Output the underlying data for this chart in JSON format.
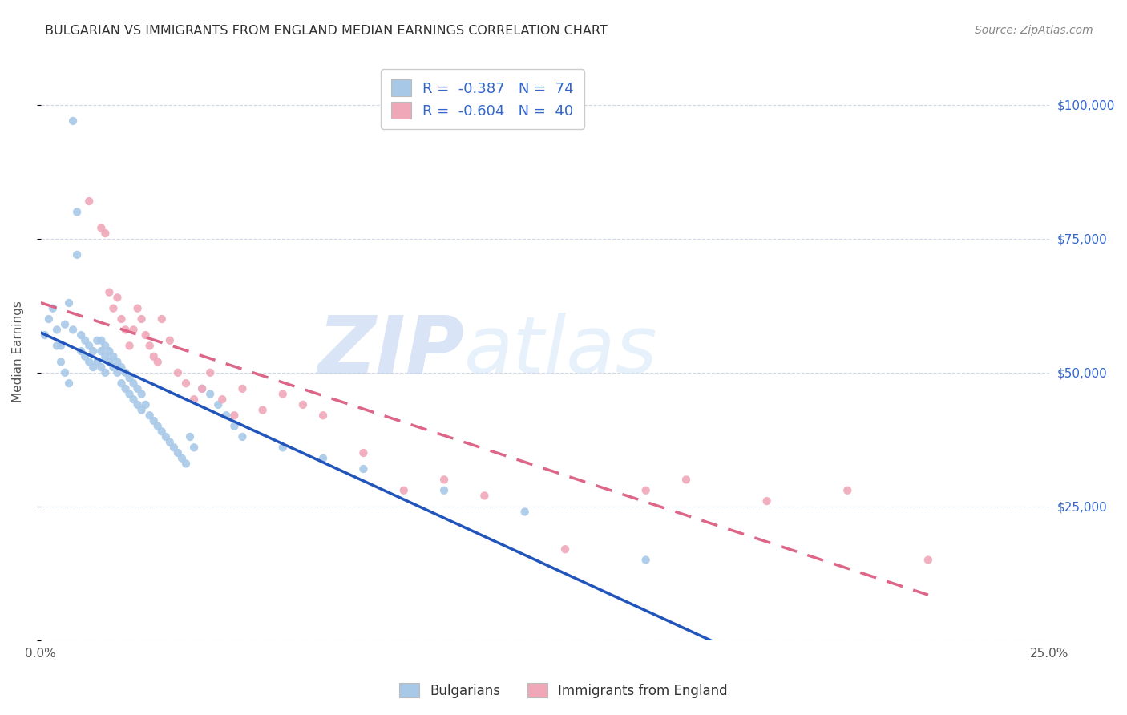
{
  "title": "BULGARIAN VS IMMIGRANTS FROM ENGLAND MEDIAN EARNINGS CORRELATION CHART",
  "source": "Source: ZipAtlas.com",
  "ylabel": "Median Earnings",
  "y_ticks": [
    0,
    25000,
    50000,
    75000,
    100000
  ],
  "y_tick_labels": [
    "",
    "$25,000",
    "$50,000",
    "$75,000",
    "$100,000"
  ],
  "x_min": 0.0,
  "x_max": 0.25,
  "y_min": 0,
  "y_max": 108000,
  "watermark_zip": "ZIP",
  "watermark_atlas": "atlas",
  "legend_r1": "-0.387",
  "legend_n1": "74",
  "legend_r2": "-0.604",
  "legend_n2": "40",
  "blue_color": "#a8c8e8",
  "pink_color": "#f0a8b8",
  "blue_line_color": "#2255bb",
  "pink_line_color": "#dd6688",
  "bg_color": "#ffffff",
  "grid_color": "#d0d8e8",
  "title_color": "#303030",
  "tick_color_right": "#3366cc",
  "source_color": "#888888",
  "legend_label1": "Bulgarians",
  "legend_label2": "Immigrants from England",
  "bulgarians_x": [
    0.001,
    0.002,
    0.003,
    0.004,
    0.005,
    0.006,
    0.007,
    0.008,
    0.008,
    0.009,
    0.009,
    0.01,
    0.01,
    0.011,
    0.011,
    0.012,
    0.012,
    0.013,
    0.013,
    0.014,
    0.014,
    0.015,
    0.015,
    0.015,
    0.016,
    0.016,
    0.016,
    0.017,
    0.017,
    0.018,
    0.018,
    0.019,
    0.019,
    0.02,
    0.02,
    0.021,
    0.021,
    0.022,
    0.022,
    0.023,
    0.023,
    0.024,
    0.024,
    0.025,
    0.025,
    0.026,
    0.027,
    0.028,
    0.029,
    0.03,
    0.031,
    0.032,
    0.033,
    0.034,
    0.035,
    0.036,
    0.037,
    0.038,
    0.04,
    0.042,
    0.044,
    0.046,
    0.048,
    0.05,
    0.06,
    0.07,
    0.08,
    0.1,
    0.12,
    0.15,
    0.004,
    0.005,
    0.006,
    0.007
  ],
  "bulgarians_y": [
    57000,
    60000,
    62000,
    58000,
    55000,
    59000,
    63000,
    97000,
    58000,
    80000,
    72000,
    57000,
    54000,
    56000,
    53000,
    55000,
    52000,
    54000,
    51000,
    56000,
    52000,
    54000,
    51000,
    56000,
    53000,
    50000,
    55000,
    52000,
    54000,
    51000,
    53000,
    50000,
    52000,
    51000,
    48000,
    50000,
    47000,
    49000,
    46000,
    48000,
    45000,
    47000,
    44000,
    46000,
    43000,
    44000,
    42000,
    41000,
    40000,
    39000,
    38000,
    37000,
    36000,
    35000,
    34000,
    33000,
    38000,
    36000,
    47000,
    46000,
    44000,
    42000,
    40000,
    38000,
    36000,
    34000,
    32000,
    28000,
    24000,
    15000,
    55000,
    52000,
    50000,
    48000
  ],
  "england_x": [
    0.012,
    0.015,
    0.016,
    0.017,
    0.018,
    0.019,
    0.02,
    0.021,
    0.022,
    0.023,
    0.024,
    0.025,
    0.026,
    0.027,
    0.028,
    0.029,
    0.03,
    0.032,
    0.034,
    0.036,
    0.038,
    0.04,
    0.042,
    0.045,
    0.048,
    0.05,
    0.055,
    0.06,
    0.065,
    0.07,
    0.08,
    0.09,
    0.1,
    0.11,
    0.13,
    0.15,
    0.16,
    0.18,
    0.2,
    0.22
  ],
  "england_y": [
    82000,
    77000,
    76000,
    65000,
    62000,
    64000,
    60000,
    58000,
    55000,
    58000,
    62000,
    60000,
    57000,
    55000,
    53000,
    52000,
    60000,
    56000,
    50000,
    48000,
    45000,
    47000,
    50000,
    45000,
    42000,
    47000,
    43000,
    46000,
    44000,
    42000,
    35000,
    28000,
    30000,
    27000,
    17000,
    28000,
    30000,
    26000,
    28000,
    15000
  ]
}
